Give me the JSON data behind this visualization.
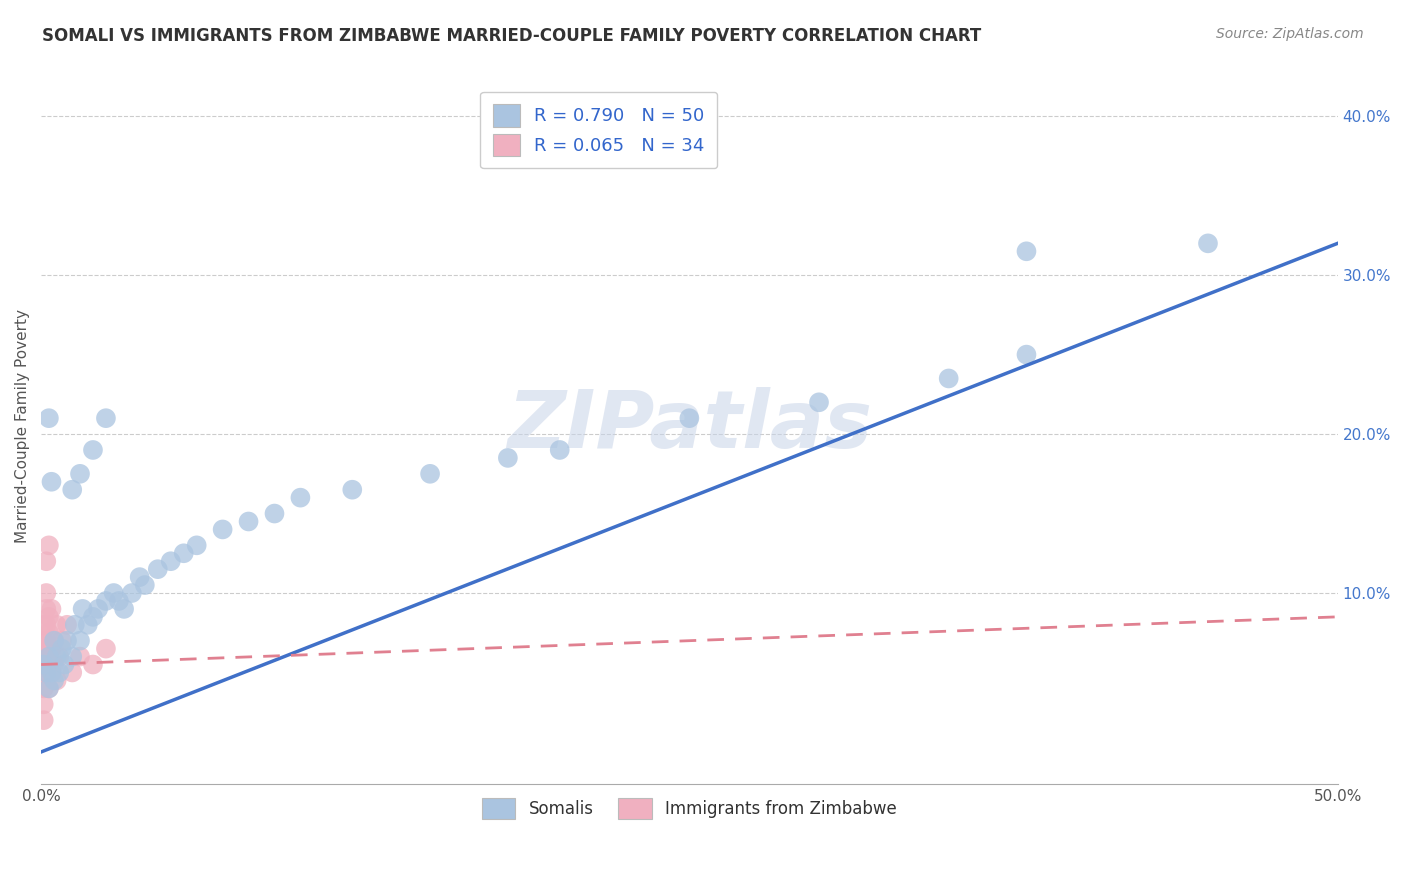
{
  "title": "SOMALI VS IMMIGRANTS FROM ZIMBABWE MARRIED-COUPLE FAMILY POVERTY CORRELATION CHART",
  "source": "Source: ZipAtlas.com",
  "ylabel": "Married-Couple Family Poverty",
  "xmin": 0.0,
  "xmax": 0.5,
  "ymin": -0.02,
  "ymax": 0.43,
  "xticks": [
    0.0,
    0.1,
    0.2,
    0.3,
    0.4,
    0.5
  ],
  "xticklabels": [
    "0.0%",
    "",
    "",
    "",
    "",
    "50.0%"
  ],
  "ytick_right_vals": [
    0.1,
    0.2,
    0.3,
    0.4
  ],
  "ytick_right_labels": [
    "10.0%",
    "20.0%",
    "30.0%",
    "40.0%"
  ],
  "legend1_labels": [
    "R = 0.790   N = 50",
    "R = 0.065   N = 34"
  ],
  "legend2_labels": [
    "Somalis",
    "Immigrants from Zimbabwe"
  ],
  "somali_color": "#aac4e0",
  "zimbabwe_color": "#f0b0c0",
  "somali_line_color": "#4070c8",
  "zimbabwe_line_color": "#e08090",
  "watermark": "ZIPatlas",
  "background_color": "#ffffff",
  "grid_color": "#cccccc",
  "somali_line_x0": 0.0,
  "somali_line_y0": 0.0,
  "somali_line_x1": 0.5,
  "somali_line_y1": 0.32,
  "zimbabwe_line_x0": 0.0,
  "zimbabwe_line_y0": 0.055,
  "zimbabwe_line_x1": 0.5,
  "zimbabwe_line_y1": 0.085,
  "somali_scatter": [
    [
      0.001,
      0.055
    ],
    [
      0.002,
      0.05
    ],
    [
      0.003,
      0.04
    ],
    [
      0.003,
      0.06
    ],
    [
      0.004,
      0.05
    ],
    [
      0.005,
      0.07
    ],
    [
      0.005,
      0.045
    ],
    [
      0.006,
      0.06
    ],
    [
      0.007,
      0.05
    ],
    [
      0.008,
      0.065
    ],
    [
      0.009,
      0.055
    ],
    [
      0.01,
      0.07
    ],
    [
      0.012,
      0.06
    ],
    [
      0.013,
      0.08
    ],
    [
      0.015,
      0.07
    ],
    [
      0.016,
      0.09
    ],
    [
      0.018,
      0.08
    ],
    [
      0.02,
      0.085
    ],
    [
      0.022,
      0.09
    ],
    [
      0.025,
      0.095
    ],
    [
      0.028,
      0.1
    ],
    [
      0.03,
      0.095
    ],
    [
      0.032,
      0.09
    ],
    [
      0.035,
      0.1
    ],
    [
      0.038,
      0.11
    ],
    [
      0.04,
      0.105
    ],
    [
      0.045,
      0.115
    ],
    [
      0.05,
      0.12
    ],
    [
      0.055,
      0.125
    ],
    [
      0.06,
      0.13
    ],
    [
      0.07,
      0.14
    ],
    [
      0.08,
      0.145
    ],
    [
      0.09,
      0.15
    ],
    [
      0.1,
      0.16
    ],
    [
      0.12,
      0.165
    ],
    [
      0.15,
      0.175
    ],
    [
      0.18,
      0.185
    ],
    [
      0.2,
      0.19
    ],
    [
      0.25,
      0.21
    ],
    [
      0.3,
      0.22
    ],
    [
      0.35,
      0.235
    ],
    [
      0.38,
      0.25
    ],
    [
      0.004,
      0.17
    ],
    [
      0.003,
      0.21
    ],
    [
      0.012,
      0.165
    ],
    [
      0.015,
      0.175
    ],
    [
      0.02,
      0.19
    ],
    [
      0.025,
      0.21
    ],
    [
      0.45,
      0.32
    ],
    [
      0.38,
      0.315
    ]
  ],
  "zimbabwe_scatter": [
    [
      0.001,
      0.02
    ],
    [
      0.001,
      0.04
    ],
    [
      0.001,
      0.05
    ],
    [
      0.001,
      0.06
    ],
    [
      0.001,
      0.07
    ],
    [
      0.001,
      0.08
    ],
    [
      0.001,
      0.03
    ],
    [
      0.002,
      0.05
    ],
    [
      0.002,
      0.055
    ],
    [
      0.002,
      0.065
    ],
    [
      0.002,
      0.07
    ],
    [
      0.002,
      0.08
    ],
    [
      0.002,
      0.09
    ],
    [
      0.002,
      0.1
    ],
    [
      0.002,
      0.12
    ],
    [
      0.003,
      0.04
    ],
    [
      0.003,
      0.06
    ],
    [
      0.003,
      0.075
    ],
    [
      0.003,
      0.085
    ],
    [
      0.003,
      0.13
    ],
    [
      0.004,
      0.05
    ],
    [
      0.004,
      0.065
    ],
    [
      0.004,
      0.09
    ],
    [
      0.005,
      0.055
    ],
    [
      0.005,
      0.07
    ],
    [
      0.006,
      0.045
    ],
    [
      0.006,
      0.08
    ],
    [
      0.007,
      0.06
    ],
    [
      0.008,
      0.07
    ],
    [
      0.01,
      0.08
    ],
    [
      0.012,
      0.05
    ],
    [
      0.015,
      0.06
    ],
    [
      0.02,
      0.055
    ],
    [
      0.025,
      0.065
    ]
  ]
}
